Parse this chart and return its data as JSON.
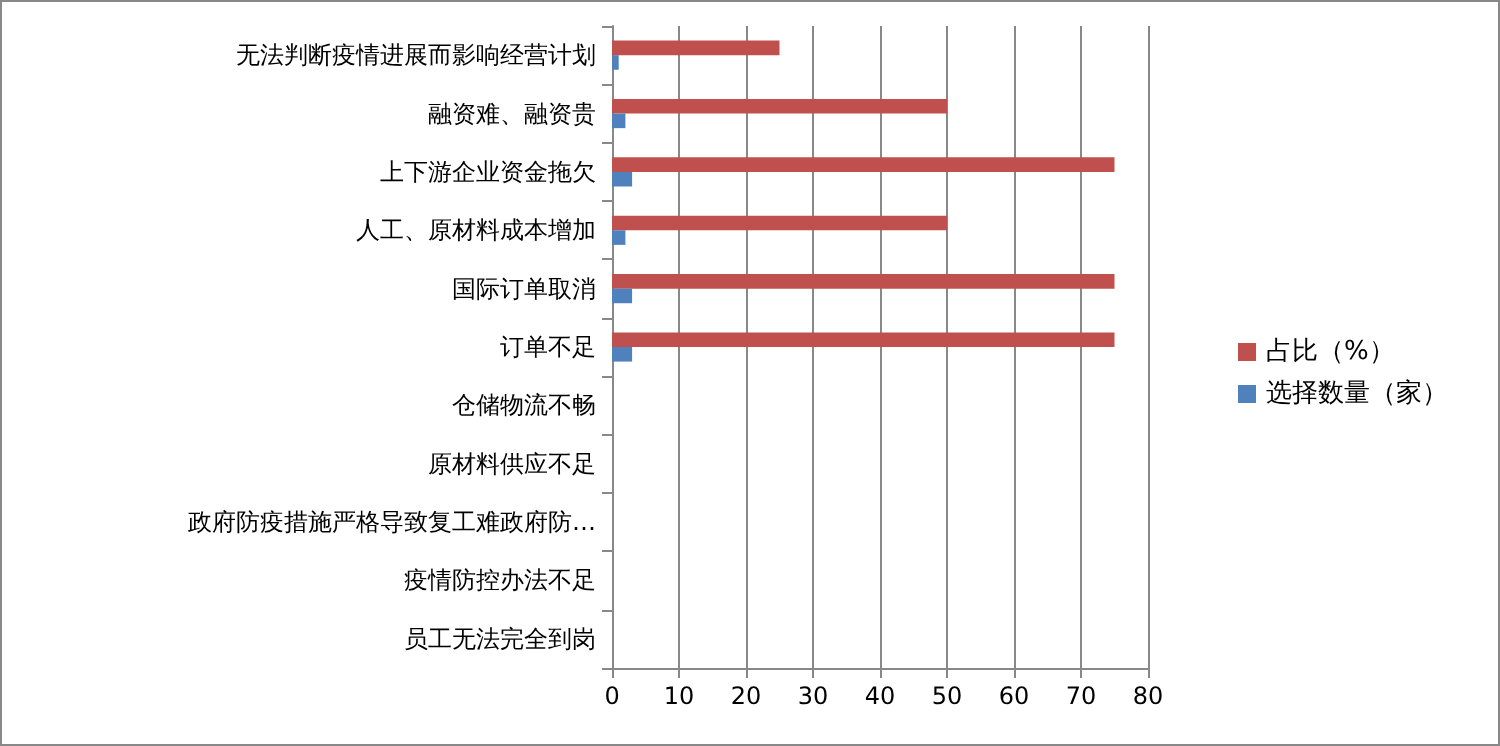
{
  "chart_data": {
    "type": "bar",
    "orientation": "horizontal",
    "categories": [
      "无法判断疫情进展而影响经营计划",
      "融资难、融资贵",
      "上下游企业资金拖欠",
      "人工、原材料成本增加",
      "国际订单取消",
      "订单不足",
      "仓储物流不畅",
      "原材料供应不足",
      "政府防疫措施严格导致复工难政府防…",
      "疫情防控办法不足",
      "员工无法完全到岗"
    ],
    "series": [
      {
        "name": "占比（%）",
        "color": "#c0504d",
        "values": [
          25,
          50,
          75,
          50,
          75,
          75,
          0,
          0,
          0,
          0,
          0
        ]
      },
      {
        "name": "选择数量（家）",
        "color": "#4f81bd",
        "values": [
          1,
          2,
          3,
          2,
          3,
          3,
          0,
          0,
          0,
          0,
          0
        ]
      }
    ],
    "xlim": [
      0,
      80
    ],
    "xticks": [
      0,
      10,
      20,
      30,
      40,
      50,
      60,
      70,
      80
    ],
    "grid": "x",
    "legend": "right"
  }
}
